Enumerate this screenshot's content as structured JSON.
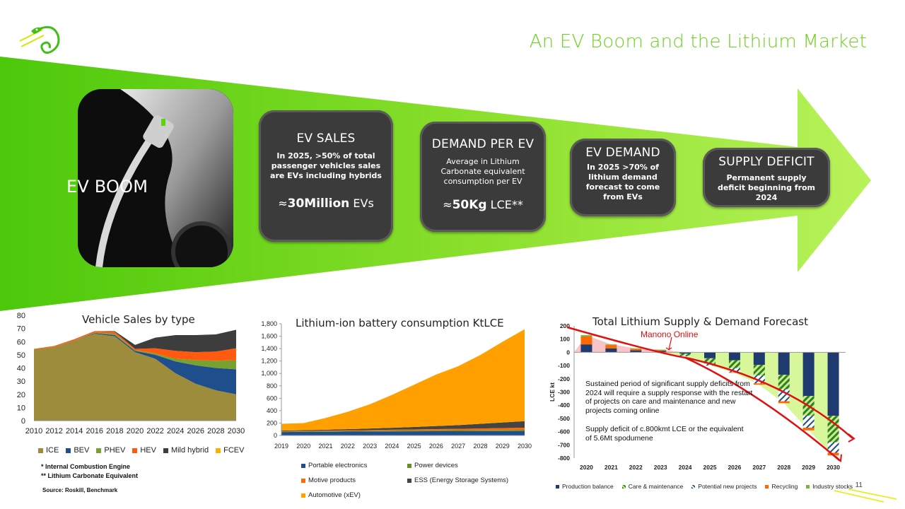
{
  "slide": {
    "title": "An EV Boom and the Lithium Market",
    "page_number": "11",
    "photo_label": "EV BOOM",
    "logo_icon": "chameleon-logo-icon"
  },
  "cards": [
    {
      "heading": "EV SALES",
      "desc": "In 2025, >50% of total passenger vehicles sales are EVs including hybrids",
      "big_approx": "≈",
      "big_num": "30Million",
      "big_unit": " EVs"
    },
    {
      "heading": "DEMAND PER EV",
      "desc": "Average in Lithium Carbonate equivalent consumption per EV",
      "big_approx": "≈",
      "big_num": "50Kg",
      "big_unit": " LCE**"
    },
    {
      "heading": "EV DEMAND",
      "desc": "In 2025 >70% of lithium demand forecast to come from EVs"
    },
    {
      "heading": "SUPPLY DEFICIT",
      "desc": "Permanent supply deficit beginning from 2024"
    }
  ],
  "notes": {
    "ice": "* Internal Combustion Engine",
    "lce": "** Lithium Carbonate Equivalent",
    "source": "Source: Roskill, Benchmark"
  },
  "colors": {
    "green": "#6bd21c",
    "card": "#3b3b3b",
    "deficit_red": "#e01010"
  },
  "chart_data": [
    {
      "type": "area",
      "title": "Vehicle Sales by type",
      "x": [
        2010,
        2012,
        2014,
        2016,
        2018,
        2020,
        2022,
        2024,
        2026,
        2028,
        2030
      ],
      "xticks": [
        "2010",
        "2012",
        "2014",
        "2016",
        "2018",
        "2020",
        "2022",
        "2024",
        "2026",
        "2028",
        "2030"
      ],
      "yticks": [
        "0",
        "10",
        "20",
        "30",
        "40",
        "50",
        "60",
        "70",
        "80"
      ],
      "ylim": [
        0,
        80
      ],
      "stacked": true,
      "series": [
        {
          "name": "ICE",
          "color": "#9c8c3b",
          "values": [
            54,
            56,
            61,
            66,
            64,
            52,
            47,
            36,
            28,
            23,
            20
          ]
        },
        {
          "name": "BEV",
          "color": "#1f4e8c",
          "values": [
            0,
            0,
            0,
            0.5,
            1,
            1,
            3,
            9,
            14,
            17,
            19
          ]
        },
        {
          "name": "PHEV",
          "color": "#78a22f",
          "values": [
            0,
            0,
            0,
            0.5,
            1,
            0.5,
            1,
            2,
            4,
            5.5,
            7
          ]
        },
        {
          "name": "HEV",
          "color": "#ff5a0f",
          "values": [
            0.5,
            0.7,
            0.9,
            1,
            1.5,
            1,
            4,
            6,
            6,
            7,
            9
          ]
        },
        {
          "name": "Mild hybrid",
          "color": "#3d3d3d",
          "values": [
            0,
            0,
            0,
            0,
            0.5,
            3,
            8,
            12,
            13,
            13,
            14
          ]
        },
        {
          "name": "FCEV",
          "color": "#ffb000",
          "values": [
            0,
            0,
            0,
            0,
            0,
            0,
            0,
            0,
            0,
            0,
            0
          ]
        }
      ]
    },
    {
      "type": "area",
      "title": "Lithium-ion battery consumption KtLCE",
      "x": [
        2019,
        2020,
        2021,
        2022,
        2023,
        2024,
        2025,
        2026,
        2027,
        2028,
        2029,
        2030
      ],
      "xticks": [
        "2019",
        "2020",
        "2021",
        "2022",
        "2023",
        "2024",
        "2025",
        "2026",
        "2027",
        "2028",
        "2029",
        "2030"
      ],
      "yticks": [
        "0",
        "200",
        "400",
        "600",
        "800",
        "1,000",
        "1,200",
        "1,400",
        "1,600",
        "1,800"
      ],
      "ylim": [
        0,
        1800
      ],
      "stacked": true,
      "series": [
        {
          "name": "Portable electronics",
          "color": "#1f4e8c",
          "values": [
            55,
            58,
            60,
            62,
            64,
            66,
            67,
            68,
            69,
            70,
            71,
            72
          ]
        },
        {
          "name": "Power devices",
          "color": "#6b8e23",
          "values": [
            8,
            9,
            10,
            11,
            12,
            13,
            14,
            15,
            16,
            17,
            18,
            19
          ]
        },
        {
          "name": "Motive products",
          "color": "#ff6a00",
          "values": [
            5,
            6,
            7,
            9,
            11,
            13,
            16,
            19,
            22,
            26,
            30,
            35
          ]
        },
        {
          "name": "ESS (Energy Storage Systems)",
          "color": "#444444",
          "values": [
            10,
            12,
            15,
            20,
            25,
            32,
            40,
            50,
            60,
            75,
            90,
            105
          ]
        },
        {
          "name": "Automotive (xEV)",
          "color": "#ffa000",
          "values": [
            110,
            115,
            190,
            280,
            390,
            530,
            680,
            830,
            950,
            1110,
            1300,
            1480
          ]
        }
      ]
    },
    {
      "type": "bar",
      "title": "Total Lithium Supply & Demand Forecast",
      "ylabel": "LCE kt",
      "categories": [
        "2020",
        "2021",
        "2022",
        "2023",
        "2024",
        "2025",
        "2026",
        "2027",
        "2028",
        "2029",
        "2030"
      ],
      "yticks": [
        "200",
        "100",
        "0",
        "-100",
        "-200",
        "-300",
        "-400",
        "-500",
        "-600",
        "-700",
        "-800"
      ],
      "ylim": [
        -800,
        200
      ],
      "stacked": true,
      "series": [
        {
          "name": "Production balance",
          "color": "#1f3a6e",
          "values": [
            60,
            30,
            15,
            10,
            -10,
            -45,
            -60,
            -95,
            -170,
            -330,
            -480
          ]
        },
        {
          "name": "Care & maintenance",
          "color": "#2e7d32",
          "values": [
            0,
            0,
            0,
            0,
            -15,
            -40,
            -60,
            -80,
            -110,
            -150,
            -200
          ]
        },
        {
          "name": "Potential new projects",
          "color": "#1f4e8c",
          "values": [
            0,
            0,
            0,
            0,
            -5,
            -15,
            -30,
            -60,
            -90,
            -90,
            -80
          ]
        },
        {
          "name": "Recycling",
          "color": "#ff6a00",
          "values": [
            60,
            25,
            10,
            5,
            0,
            0,
            -5,
            -10,
            -15,
            -20,
            -20
          ]
        },
        {
          "name": "Industry stocks",
          "color": "#7cb342",
          "values": [
            10,
            5,
            5,
            5,
            0,
            0,
            0,
            0,
            0,
            0,
            0
          ]
        }
      ],
      "annotations": {
        "manono": "Manono Online",
        "text1": "Sustained period of significant supply deficits from 2024 will require a supply response with the restart of projects on care and maintenance and new projects  coming online",
        "text2": "Supply deficit of c.800kmt LCE or the equivalent of 5.6Mt spodumene"
      }
    }
  ]
}
